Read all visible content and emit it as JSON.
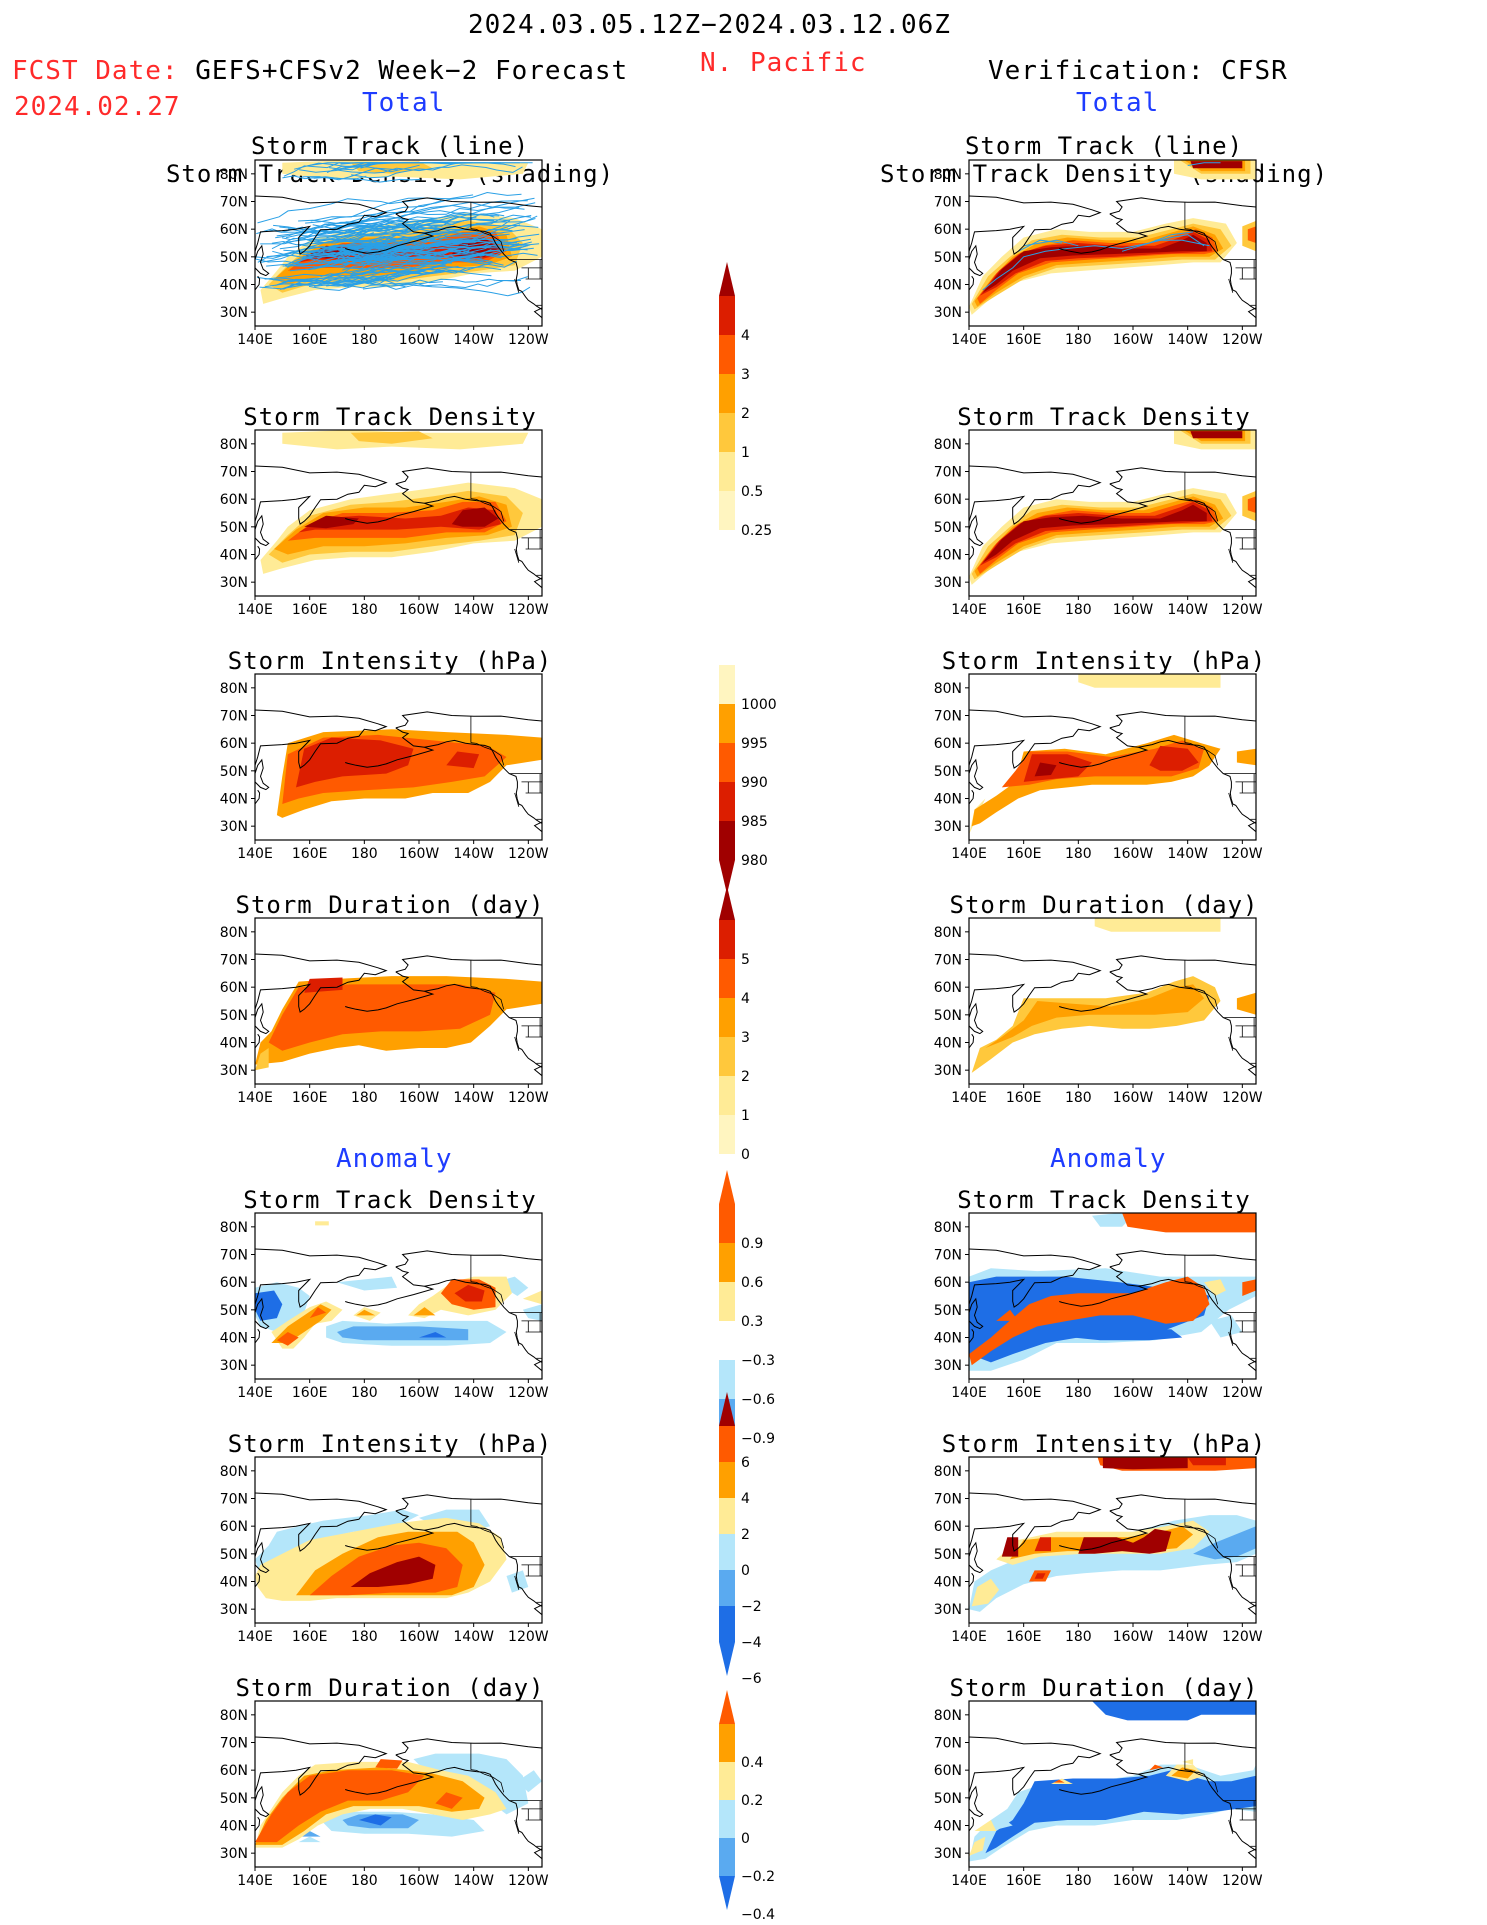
{
  "header": {
    "period": "2024.03.05.12Z−2024.03.12.06Z",
    "region": "N. Pacific",
    "fcst_label": "FCST Date:",
    "fcst_model": "GEFS+CFSv2 Week−2 Forecast",
    "fcst_date": "2024.02.27",
    "verification": "Verification: CFSR",
    "total_label": "Total",
    "anomaly_label": "Anomaly"
  },
  "panel_titles": {
    "track_line": "Storm Track (line)",
    "track_shading": "Storm Track Density (shading)",
    "density": "Storm Track Density",
    "intensity": "Storm Intensity (hPa)",
    "duration": "Storm Duration (day)"
  },
  "axes": {
    "x_ticks": [
      "140E",
      "160E",
      "180",
      "160W",
      "140W",
      "120W"
    ],
    "y_ticks": [
      "80N",
      "70N",
      "60N",
      "50N",
      "40N",
      "30N"
    ]
  },
  "colors": {
    "dark_red": "#a00000",
    "red": "#dc1e00",
    "orange_red": "#ff5a00",
    "orange": "#ffa000",
    "light_orange": "#ffc83c",
    "pale_yellow": "#ffeb96",
    "light_blue": "#b4e6fa",
    "mid_blue": "#5aaaf0",
    "blue": "#1e6ee6",
    "track_line": "#2aa0e6"
  },
  "colorbars": {
    "density": {
      "labels": [
        "4",
        "3",
        "2",
        "1",
        "0.5",
        "0.25"
      ]
    },
    "intensity": {
      "labels": [
        "1000",
        "995",
        "990",
        "985",
        "980"
      ]
    },
    "duration": {
      "labels": [
        "5",
        "4",
        "3",
        "2",
        "1",
        "0"
      ]
    },
    "density_anom": {
      "labels": [
        "0.9",
        "0.6",
        "0.3",
        "−0.3",
        "−0.6",
        "−0.9"
      ]
    },
    "intensity_anom": {
      "labels": [
        "6",
        "4",
        "2",
        "0",
        "−2",
        "−4",
        "−6"
      ]
    },
    "duration_anom": {
      "labels": [
        "0.4",
        "0.2",
        "0",
        "−0.2",
        "−0.4"
      ]
    }
  },
  "chart_data": [
    {
      "type": "heatmap",
      "name": "fcst_total_track",
      "title": "Storm Track (line) / Storm Track Density (shading)",
      "lon_range": [
        140,
        245
      ],
      "lat_range": [
        25,
        85
      ]
    },
    {
      "type": "heatmap",
      "name": "fcst_total_density",
      "title": "Storm Track Density",
      "units": "",
      "levels": [
        0.25,
        0.5,
        1,
        2,
        3,
        4
      ]
    },
    {
      "type": "heatmap",
      "name": "fcst_total_intensity",
      "title": "Storm Intensity (hPa)",
      "levels": [
        1000,
        995,
        990,
        985,
        980
      ]
    },
    {
      "type": "heatmap",
      "name": "fcst_total_duration",
      "title": "Storm Duration (day)",
      "levels": [
        0,
        1,
        2,
        3,
        4,
        5
      ]
    },
    {
      "type": "heatmap",
      "name": "fcst_anom_density",
      "title": "Storm Track Density",
      "levels": [
        -0.9,
        -0.6,
        -0.3,
        0.3,
        0.6,
        0.9
      ]
    },
    {
      "type": "heatmap",
      "name": "fcst_anom_intensity",
      "title": "Storm Intensity (hPa)",
      "levels": [
        -6,
        -4,
        -2,
        0,
        2,
        4,
        6
      ]
    },
    {
      "type": "heatmap",
      "name": "fcst_anom_duration",
      "title": "Storm Duration (day)",
      "levels": [
        -0.4,
        -0.2,
        0,
        0.2,
        0.4
      ]
    },
    {
      "type": "heatmap",
      "name": "verif_total_track",
      "title": "Storm Track (line) / Storm Track Density (shading)"
    },
    {
      "type": "heatmap",
      "name": "verif_total_density",
      "title": "Storm Track Density"
    },
    {
      "type": "heatmap",
      "name": "verif_total_intensity",
      "title": "Storm Intensity (hPa)"
    },
    {
      "type": "heatmap",
      "name": "verif_total_duration",
      "title": "Storm Duration (day)"
    },
    {
      "type": "heatmap",
      "name": "verif_anom_density",
      "title": "Storm Track Density"
    },
    {
      "type": "heatmap",
      "name": "verif_anom_intensity",
      "title": "Storm Intensity (hPa)"
    },
    {
      "type": "heatmap",
      "name": "verif_anom_duration",
      "title": "Storm Duration (day)"
    }
  ]
}
